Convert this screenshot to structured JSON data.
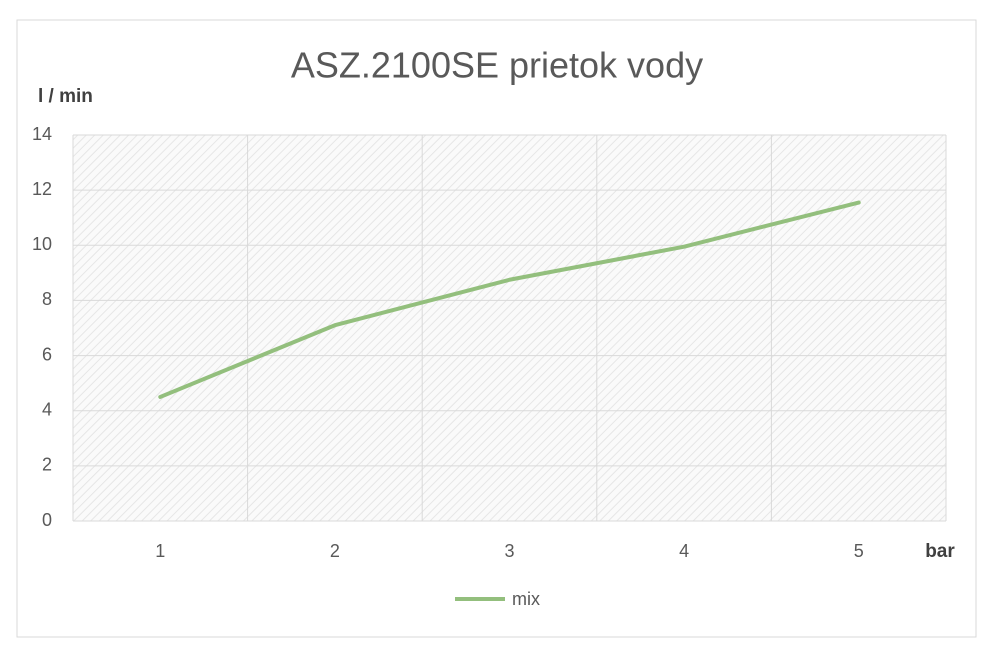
{
  "chart_data": {
    "type": "line",
    "title": "ASZ.2100SE prietok vody",
    "y_label": "l / min",
    "x_label": "bar",
    "categories": [
      "1",
      "2",
      "3",
      "4",
      "5"
    ],
    "series": [
      {
        "name": "mix",
        "color": "#93bf7d",
        "values": [
          4.5,
          7.1,
          8.75,
          9.95,
          11.55
        ]
      }
    ],
    "ylim": [
      0,
      14
    ],
    "yticks": [
      0,
      2,
      4,
      6,
      8,
      10,
      12,
      14
    ],
    "grid": true,
    "legend": "bottom"
  }
}
